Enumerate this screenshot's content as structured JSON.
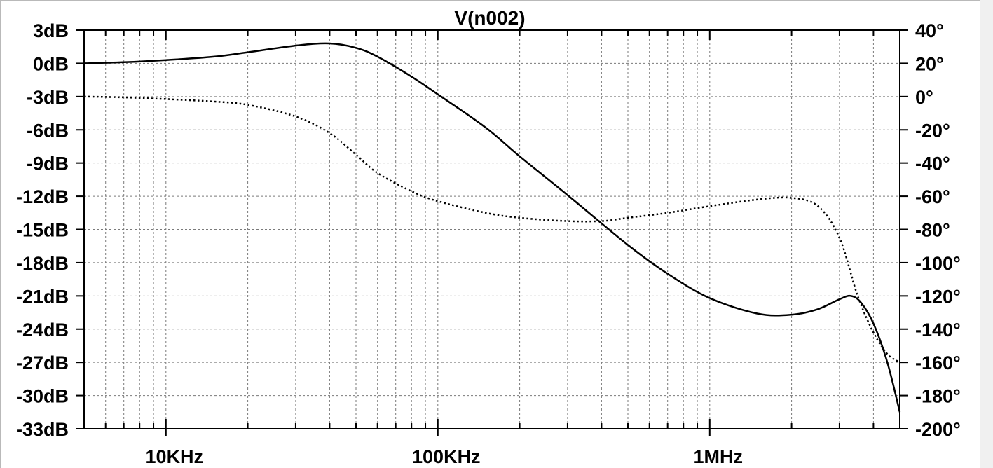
{
  "chart_data": {
    "type": "line",
    "title": "V(n002)",
    "x_scale": "log",
    "x_range_hz": [
      5000,
      5000000
    ],
    "x_tick_values": [
      10000,
      100000,
      1000000
    ],
    "x_tick_labels": [
      "10KHz",
      "100KHz",
      "1MHz"
    ],
    "y_left_range": [
      -33,
      3
    ],
    "y_left_ticks": [
      3,
      0,
      -3,
      -6,
      -9,
      -12,
      -15,
      -18,
      -21,
      -24,
      -27,
      -30,
      -33
    ],
    "y_left_labels": [
      "3dB",
      "0dB",
      "-3dB",
      "-6dB",
      "-9dB",
      "-12dB",
      "-15dB",
      "-18dB",
      "-21dB",
      "-24dB",
      "-27dB",
      "-30dB",
      "-33dB"
    ],
    "y_right_range": [
      -200,
      40
    ],
    "y_right_ticks": [
      40,
      20,
      0,
      -20,
      -40,
      -60,
      -80,
      -100,
      -120,
      -140,
      -160,
      -180,
      -200
    ],
    "y_right_labels": [
      "40°",
      "20°",
      "0°",
      "-20°",
      "-40°",
      "-60°",
      "-80°",
      "-100°",
      "-120°",
      "-140°",
      "-160°",
      "-180°",
      "-200°"
    ],
    "grid": true,
    "series": [
      {
        "style": "solid",
        "axis": "left",
        "x": [
          5000,
          7000,
          10000,
          15000,
          20000,
          30000,
          40000,
          50000,
          60000,
          80000,
          100000,
          150000,
          200000,
          300000,
          500000,
          700000,
          1000000,
          1500000,
          2000000,
          2500000,
          3000000,
          3300000,
          3600000,
          4000000,
          4500000,
          5000000
        ],
        "values": [
          0.0,
          0.1,
          0.3,
          0.6,
          1.0,
          1.6,
          1.8,
          1.4,
          0.6,
          -1.2,
          -2.8,
          -5.8,
          -8.4,
          -11.9,
          -16.4,
          -19.0,
          -21.2,
          -22.6,
          -22.7,
          -22.2,
          -21.3,
          -21.0,
          -21.6,
          -23.5,
          -27.0,
          -31.5
        ]
      },
      {
        "style": "dotted",
        "axis": "right",
        "x": [
          5000,
          7000,
          10000,
          15000,
          20000,
          30000,
          40000,
          50000,
          60000,
          80000,
          100000,
          150000,
          200000,
          300000,
          400000,
          500000,
          700000,
          1000000,
          1500000,
          2000000,
          2500000,
          3000000,
          3500000,
          4000000,
          4500000,
          5000000
        ],
        "values": [
          0,
          -0.5,
          -1.5,
          -3,
          -5,
          -12,
          -22,
          -35,
          -46,
          -57,
          -63,
          -70,
          -73,
          -75,
          -75,
          -73,
          -70,
          -66,
          -62,
          -61,
          -66,
          -85,
          -120,
          -142,
          -155,
          -160
        ]
      }
    ]
  }
}
